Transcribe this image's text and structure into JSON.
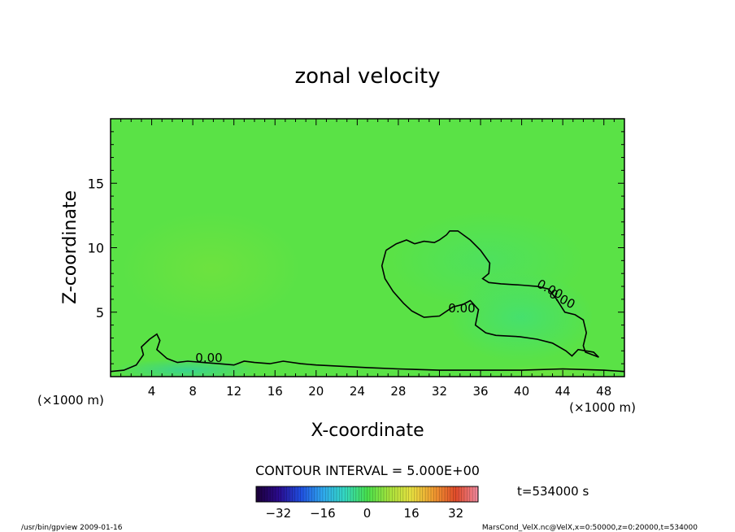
{
  "chart_data": {
    "type": "heatmap",
    "title": "zonal velocity",
    "xlabel": "X-coordinate",
    "ylabel": "Z-coordinate",
    "x_unit": "(×1000 m)",
    "xlim": [
      0,
      50
    ],
    "ylim": [
      0,
      20
    ],
    "x_ticks": [
      4,
      8,
      12,
      16,
      20,
      24,
      28,
      32,
      36,
      40,
      44,
      48
    ],
    "y_ticks": [
      5,
      10,
      15
    ],
    "contour_interval_text": "CONTOUR INTERVAL = 5.000E+00",
    "contour_labels": [
      "0.00",
      "0.00",
      "0.00",
      "0.00"
    ],
    "time_text": "t=534000 s",
    "colorbar": {
      "range": [
        -40,
        40
      ],
      "ticks": [
        -32,
        -16,
        0,
        16,
        32
      ]
    },
    "zero_contours": [
      [
        [
          26.8,
          9.8
        ],
        [
          27.8,
          10.3
        ],
        [
          28.8,
          10.6
        ],
        [
          29.6,
          10.3
        ],
        [
          30.5,
          10.5
        ],
        [
          31.5,
          10.4
        ],
        [
          32.0,
          10.6
        ],
        [
          32.7,
          11.0
        ],
        [
          33.0,
          11.3
        ],
        [
          33.8,
          11.3
        ],
        [
          35.0,
          10.6
        ],
        [
          36.0,
          9.8
        ],
        [
          36.9,
          8.8
        ],
        [
          36.8,
          8.0
        ],
        [
          36.2,
          7.6
        ],
        [
          36.8,
          7.3
        ],
        [
          38.0,
          7.2
        ],
        [
          40.0,
          7.1
        ],
        [
          41.5,
          7.0
        ],
        [
          42.6,
          6.8
        ],
        [
          43.4,
          6.0
        ],
        [
          44.2,
          5.0
        ],
        [
          45.2,
          4.8
        ],
        [
          46.0,
          4.4
        ],
        [
          46.3,
          3.4
        ],
        [
          46.0,
          2.4
        ],
        [
          46.2,
          1.9
        ],
        [
          47.2,
          1.6
        ],
        [
          47.5,
          1.5
        ],
        [
          47.0,
          1.9
        ],
        [
          45.5,
          2.1
        ],
        [
          44.9,
          1.6
        ],
        [
          44.3,
          2.0
        ],
        [
          43.0,
          2.6
        ],
        [
          41.5,
          2.9
        ],
        [
          39.8,
          3.1
        ],
        [
          37.5,
          3.2
        ],
        [
          36.5,
          3.4
        ],
        [
          35.5,
          4.0
        ],
        [
          35.8,
          5.2
        ],
        [
          35.0,
          5.9
        ],
        [
          34.3,
          5.6
        ],
        [
          33.3,
          5.4
        ],
        [
          32.0,
          4.7
        ],
        [
          30.5,
          4.6
        ],
        [
          29.3,
          5.1
        ],
        [
          28.5,
          5.7
        ],
        [
          27.5,
          6.6
        ],
        [
          26.7,
          7.6
        ],
        [
          26.4,
          8.6
        ],
        [
          26.8,
          9.8
        ]
      ],
      [
        [
          0.0,
          0.4
        ],
        [
          1.3,
          0.5
        ],
        [
          2.5,
          0.9
        ],
        [
          3.2,
          1.7
        ],
        [
          3.0,
          2.3
        ],
        [
          3.8,
          2.9
        ],
        [
          4.5,
          3.3
        ],
        [
          4.8,
          2.8
        ],
        [
          4.5,
          2.1
        ],
        [
          5.5,
          1.4
        ],
        [
          6.5,
          1.1
        ],
        [
          7.5,
          1.2
        ],
        [
          9.0,
          1.1
        ],
        [
          10.5,
          1.0
        ],
        [
          12.0,
          0.9
        ],
        [
          13.0,
          1.2
        ],
        [
          14.0,
          1.1
        ],
        [
          15.5,
          1.0
        ],
        [
          16.8,
          1.2
        ],
        [
          18.5,
          1.0
        ],
        [
          20.0,
          0.9
        ],
        [
          22.5,
          0.8
        ],
        [
          25.0,
          0.7
        ],
        [
          28.0,
          0.6
        ],
        [
          32.0,
          0.5
        ],
        [
          36.0,
          0.5
        ],
        [
          40.0,
          0.5
        ],
        [
          44.0,
          0.6
        ],
        [
          48.0,
          0.5
        ],
        [
          50.0,
          0.4
        ]
      ]
    ],
    "annotations": {
      "left": "/usr/bin/gpview  2009-01-16",
      "right": "MarsCond_VelX.nc@VelX,x=0:50000,z=0:20000,t=534000"
    }
  }
}
